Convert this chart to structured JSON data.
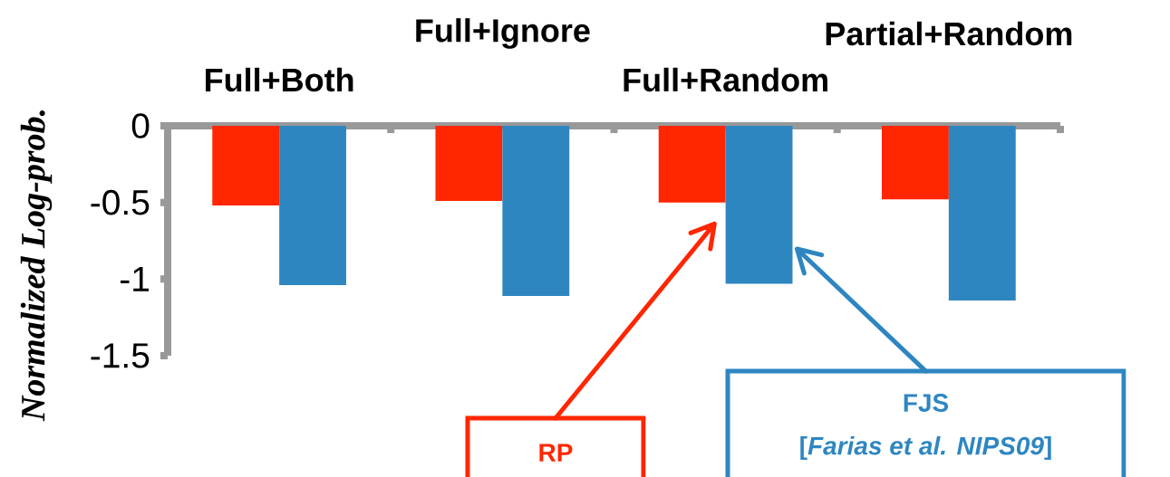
{
  "chart_data": {
    "type": "bar",
    "ylabel": "Normalized Log-prob.",
    "categories": [
      "Full+Both",
      "Full+Ignore",
      "Full+Random",
      "Partial+Random"
    ],
    "series": [
      {
        "name": "RP",
        "color": "#ff2600",
        "values": [
          -0.52,
          -0.49,
          -0.5,
          -0.48
        ]
      },
      {
        "name": "FJS",
        "color": "#2e86c1",
        "values": [
          -1.04,
          -1.11,
          -1.03,
          -1.14
        ]
      }
    ],
    "annotations": [
      "[*Farias et al. NIPS09*]"
    ],
    "ylim": [
      -1.5,
      0
    ],
    "yticks": [
      0,
      -0.5,
      -1,
      -1.5
    ]
  }
}
